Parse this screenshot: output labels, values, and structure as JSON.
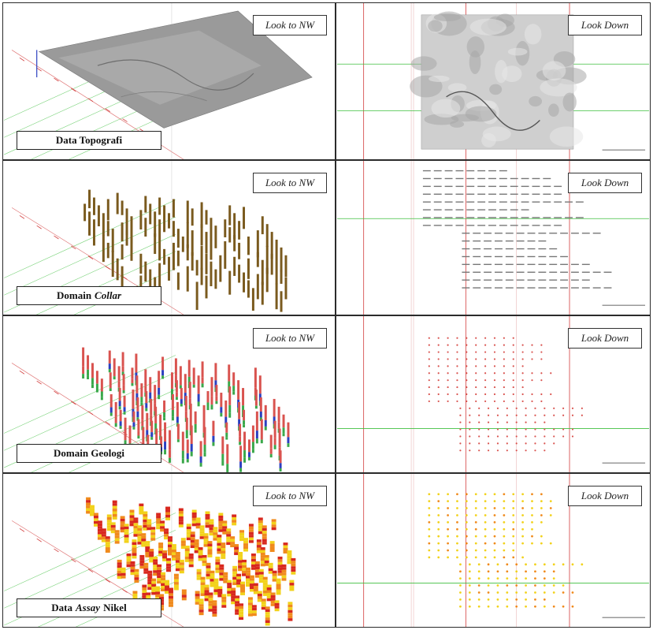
{
  "panels": [
    {
      "id": "topografi",
      "view_3d": "Look to NW",
      "view_plan": "Look Down",
      "caption_main": "Data Topografi",
      "caption_italic": "",
      "caption_tail": ""
    },
    {
      "id": "collar",
      "view_3d": "Look to NW",
      "view_plan": "Look Down",
      "caption_main": "Domain",
      "caption_italic": "Collar",
      "caption_tail": ""
    },
    {
      "id": "geologi",
      "view_3d": "Look to NW",
      "view_plan": "Look Down",
      "caption_main": "Domain Geologi",
      "caption_italic": "",
      "caption_tail": ""
    },
    {
      "id": "assay",
      "view_3d": "Look to NW",
      "view_plan": "Look Down",
      "caption_main": "Data",
      "caption_italic": "Assay",
      "caption_tail": "Nikel"
    }
  ],
  "colors": {
    "grid_red": "#d23b3b",
    "grid_green": "#3fbf3f",
    "collar_brown": "#7a5a1e",
    "geo_red": "#d9534f",
    "geo_green": "#3aa84a",
    "geo_blue": "#2b3fbf",
    "assay_yellow": "#f2d21b",
    "assay_orange": "#f08a1c",
    "assay_red": "#d8281e",
    "terrain": "#9a9a9a"
  }
}
